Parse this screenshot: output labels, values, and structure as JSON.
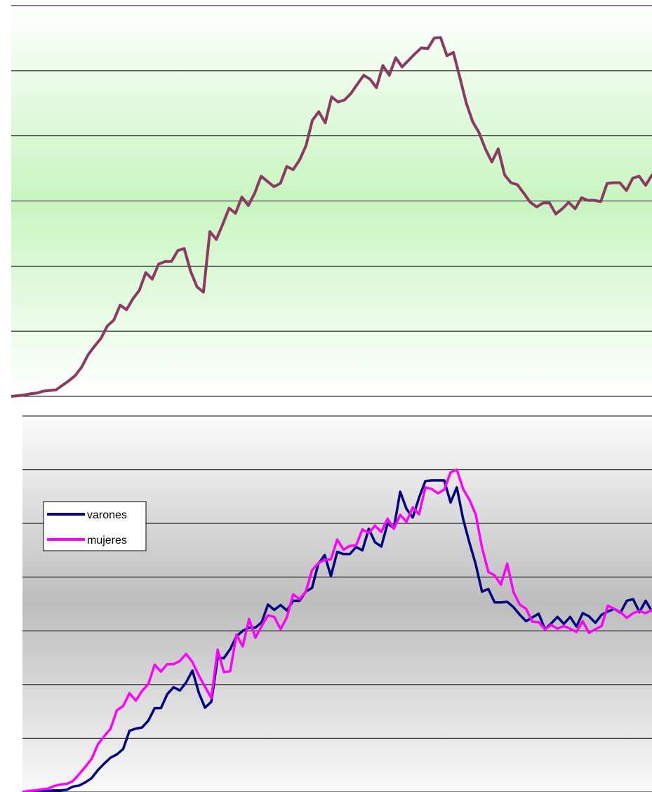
{
  "chart_data": [
    {
      "type": "line",
      "title": "",
      "xlabel": "",
      "ylabel": "",
      "ylim": [
        0,
        6
      ],
      "xlim": [
        0,
        100
      ],
      "grid": true,
      "colors": {
        "line": "#8B3A62",
        "background_top": "#ffffff",
        "background_mid": "#c8f5c0"
      },
      "series": [
        {
          "values": [
            0.0,
            0.01,
            0.02,
            0.04,
            0.05,
            0.08,
            0.09,
            0.1,
            0.17,
            0.24,
            0.32,
            0.45,
            0.64,
            0.77,
            0.89,
            1.08,
            1.17,
            1.4,
            1.33,
            1.5,
            1.63,
            1.9,
            1.8,
            2.03,
            2.07,
            2.07,
            2.24,
            2.27,
            1.92,
            1.68,
            1.6,
            2.53,
            2.41,
            2.64,
            2.89,
            2.81,
            3.06,
            2.93,
            3.12,
            3.38,
            3.3,
            3.22,
            3.27,
            3.53,
            3.48,
            3.63,
            3.85,
            4.24,
            4.37,
            4.2,
            4.6,
            4.52,
            4.55,
            4.65,
            4.79,
            4.93,
            4.87,
            4.74,
            5.08,
            4.93,
            5.2,
            5.06,
            5.16,
            5.26,
            5.35,
            5.34,
            5.5,
            5.51,
            5.23,
            5.28,
            4.9,
            4.51,
            4.22,
            4.05,
            3.8,
            3.6,
            3.8,
            3.4,
            3.28,
            3.25,
            3.12,
            2.98,
            2.91,
            2.97,
            2.97,
            2.8,
            2.88,
            2.98,
            2.88,
            3.05,
            3.01,
            3.01,
            2.99,
            3.27,
            3.28,
            3.28,
            3.16,
            3.35,
            3.38,
            3.24,
            3.4,
            3.16
          ]
        }
      ]
    },
    {
      "type": "line",
      "title": "",
      "xlabel": "",
      "ylabel": "",
      "ylim": [
        0,
        7
      ],
      "xlim": [
        0,
        100
      ],
      "grid": true,
      "legend_position": "middle-left",
      "colors": {
        "background_top": "#fafafa",
        "background_mid": "#bdbdbd"
      },
      "series": [
        {
          "name": "varones",
          "color": "#000080",
          "values": [
            0.0,
            0.0,
            0.01,
            0.02,
            0.02,
            0.03,
            0.03,
            0.04,
            0.1,
            0.12,
            0.18,
            0.26,
            0.41,
            0.53,
            0.64,
            0.7,
            0.8,
            1.14,
            1.18,
            1.2,
            1.33,
            1.56,
            1.56,
            1.82,
            1.95,
            1.89,
            2.04,
            2.26,
            1.85,
            1.57,
            1.68,
            2.5,
            2.49,
            2.66,
            2.9,
            3.0,
            3.06,
            3.06,
            3.16,
            3.49,
            3.39,
            3.48,
            3.38,
            3.56,
            3.56,
            3.73,
            3.8,
            4.25,
            4.41,
            4.02,
            4.47,
            4.43,
            4.43,
            4.56,
            4.5,
            4.9,
            4.65,
            4.57,
            5.0,
            4.91,
            5.59,
            5.27,
            5.11,
            5.48,
            5.79,
            5.8,
            5.8,
            5.8,
            5.39,
            5.67,
            5.08,
            4.64,
            4.24,
            3.73,
            3.78,
            3.53,
            3.53,
            3.54,
            3.44,
            3.3,
            3.18,
            3.25,
            3.32,
            3.03,
            3.14,
            3.26,
            3.13,
            3.26,
            3.08,
            3.33,
            3.27,
            3.15,
            3.3,
            3.36,
            3.41,
            3.34,
            3.56,
            3.59,
            3.35,
            3.56,
            3.36
          ]
        },
        {
          "name": "mujeres",
          "color": "#ff00ff",
          "values": [
            0.0,
            0.02,
            0.03,
            0.05,
            0.06,
            0.11,
            0.14,
            0.15,
            0.2,
            0.33,
            0.47,
            0.62,
            0.89,
            1.04,
            1.18,
            1.52,
            1.6,
            1.84,
            1.7,
            1.88,
            2.01,
            2.37,
            2.24,
            2.38,
            2.38,
            2.44,
            2.57,
            2.42,
            2.17,
            1.96,
            1.75,
            2.65,
            2.23,
            2.25,
            2.93,
            2.71,
            3.22,
            2.87,
            3.09,
            3.29,
            3.26,
            3.03,
            3.25,
            3.68,
            3.59,
            3.73,
            4.13,
            4.26,
            4.32,
            4.33,
            4.7,
            4.51,
            4.58,
            4.59,
            4.89,
            4.82,
            4.96,
            4.84,
            5.09,
            4.9,
            5.16,
            5.03,
            5.3,
            5.17,
            5.67,
            5.64,
            5.56,
            5.63,
            5.95,
            6.0,
            5.64,
            5.44,
            5.17,
            4.55,
            4.1,
            4.03,
            3.86,
            4.25,
            3.72,
            3.49,
            3.41,
            3.17,
            3.16,
            3.03,
            3.11,
            3.04,
            3.09,
            3.04,
            2.98,
            3.18,
            2.96,
            3.03,
            3.09,
            3.47,
            3.41,
            3.35,
            3.24,
            3.33,
            3.37,
            3.33,
            3.39,
            3.23,
            3.1
          ]
        }
      ]
    }
  ]
}
